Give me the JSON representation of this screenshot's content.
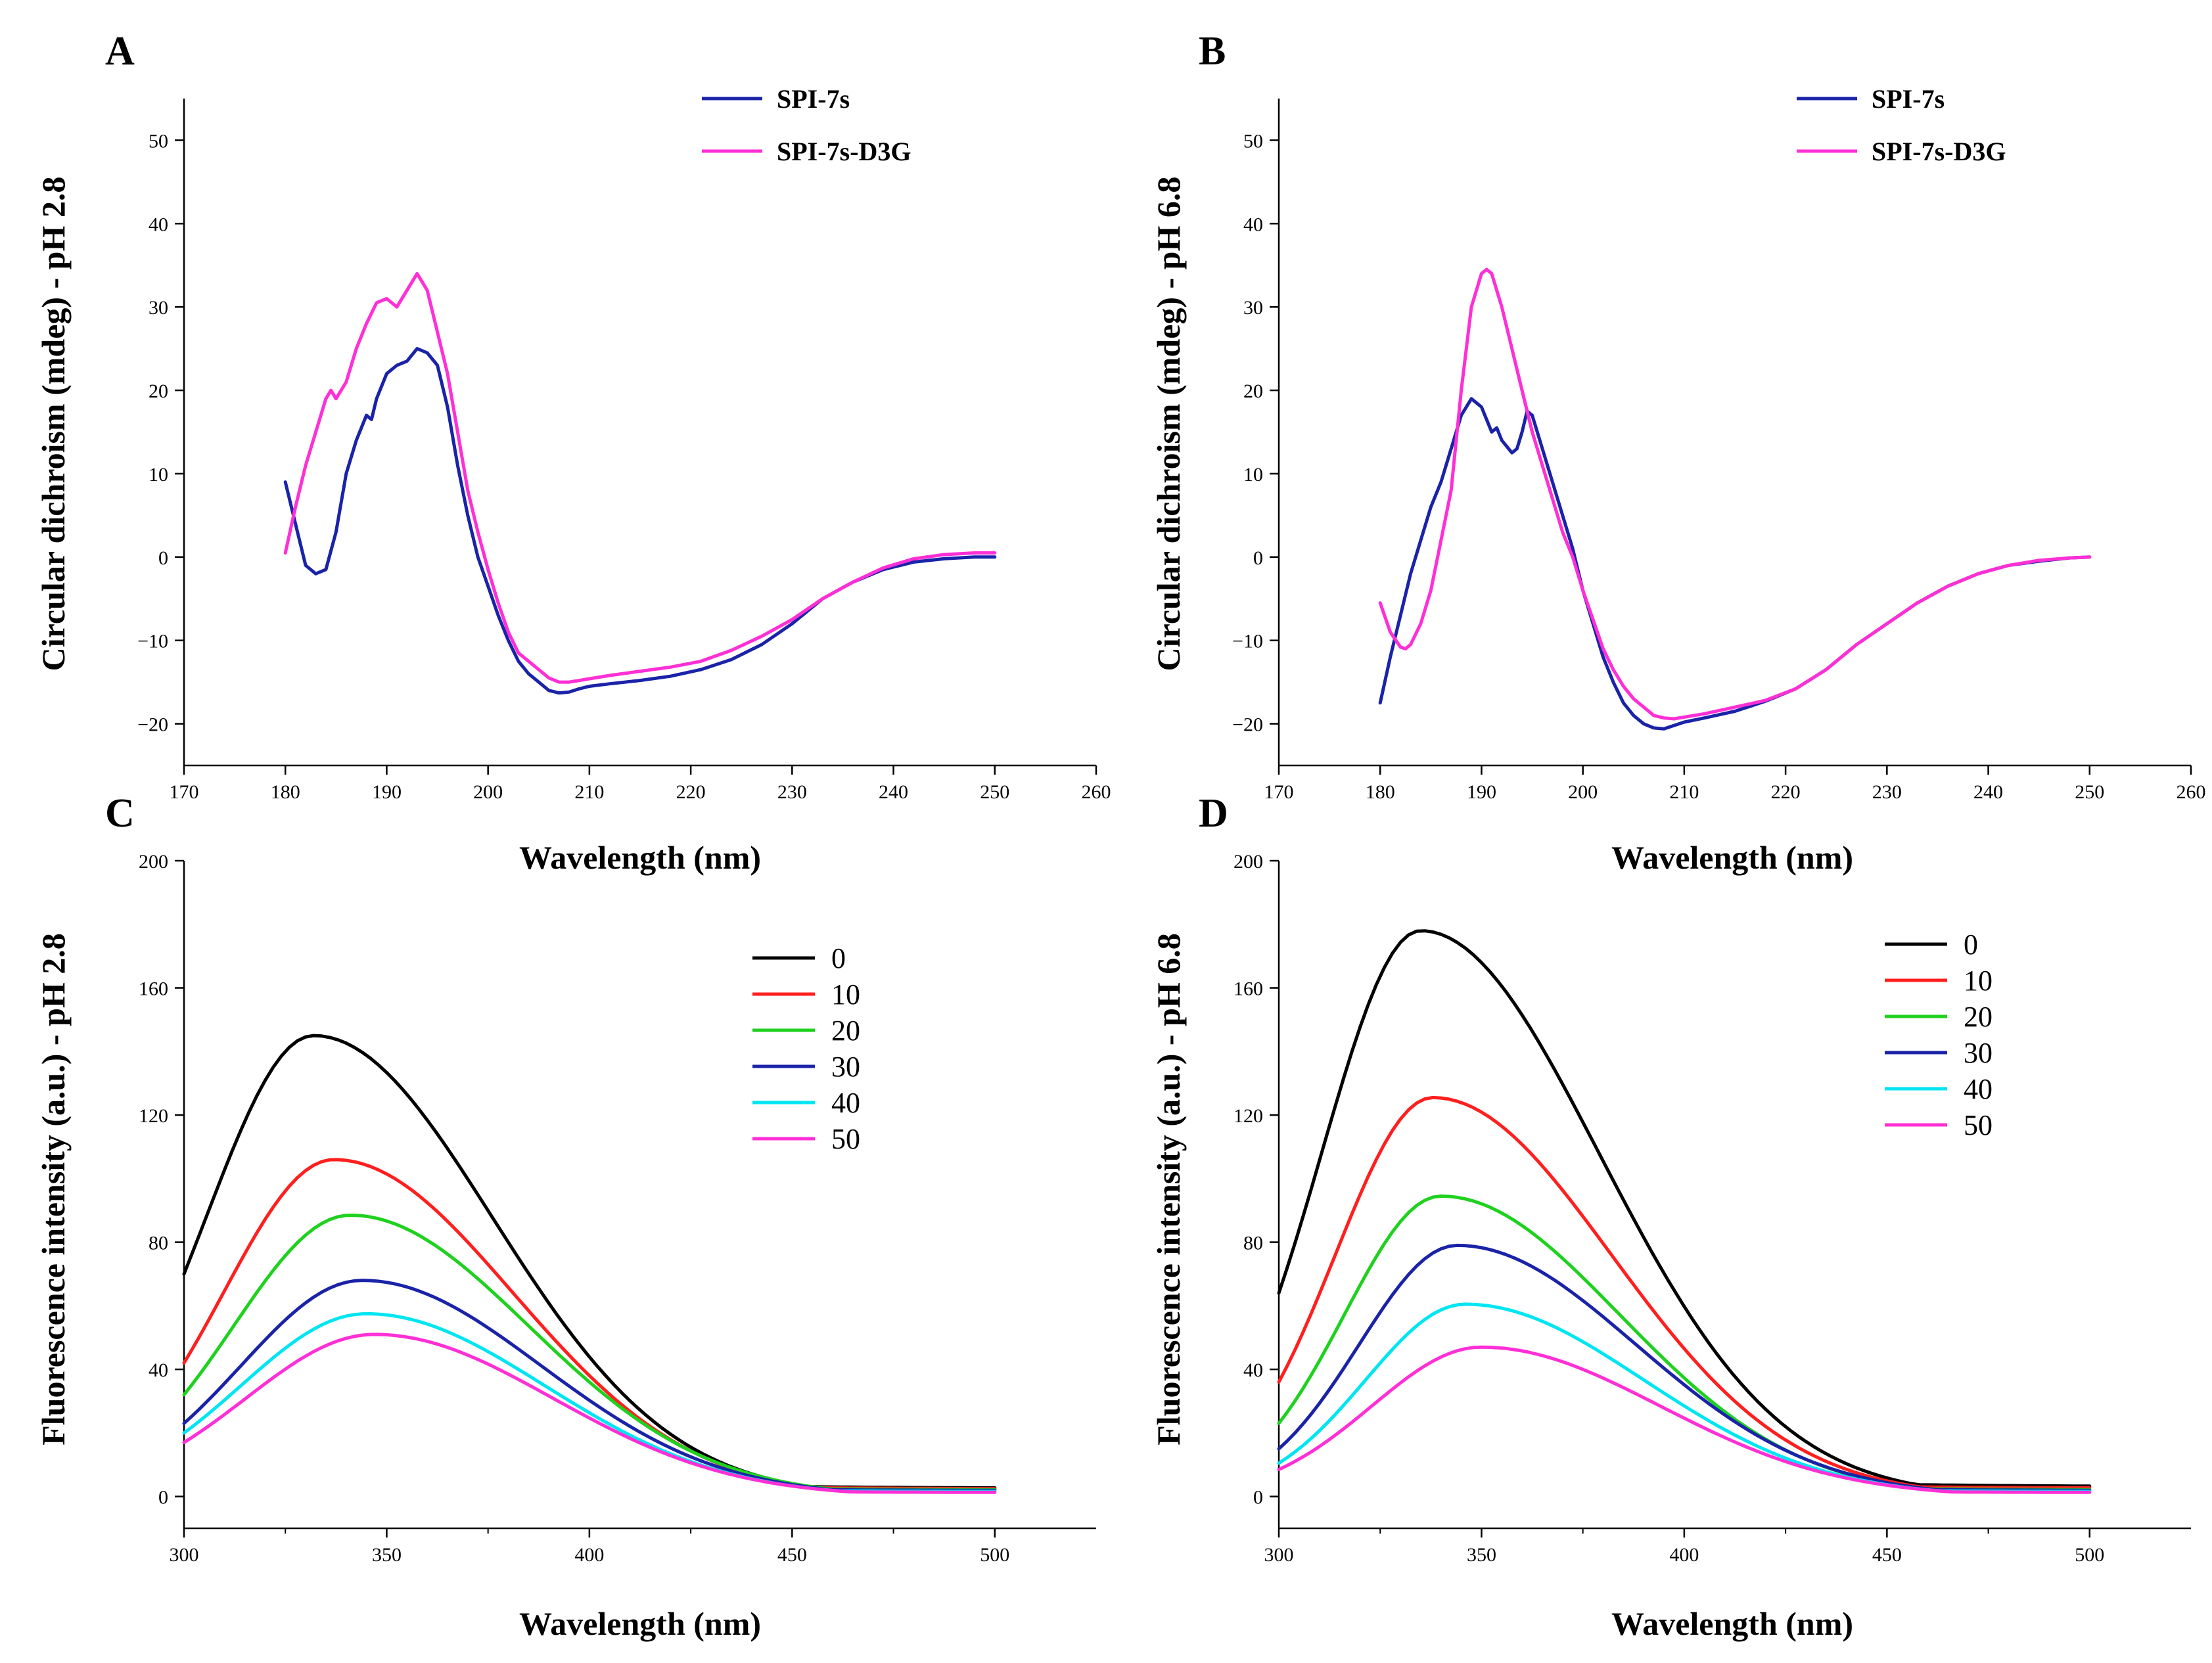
{
  "chart_data": [
    {
      "panel": "A",
      "type": "line",
      "xlabel": "Wavelength (nm)",
      "ylabel": "Circular dichroism (mdeg) - pH 2.8",
      "xlim": [
        170,
        260
      ],
      "ylim": [
        -25,
        55
      ],
      "xticks": [
        170,
        180,
        190,
        200,
        210,
        220,
        230,
        240,
        250,
        260
      ],
      "yticks": [
        -20,
        -10,
        0,
        10,
        20,
        30,
        40,
        50
      ],
      "tick_labels_x": [
        "170",
        "180",
        "190",
        "200",
        "210",
        "220",
        "230",
        "240",
        "250",
        "260"
      ],
      "tick_labels_y": [
        "−20",
        "−10",
        "0",
        "10",
        "20",
        "30",
        "40",
        "50"
      ],
      "legend_position": "top-right",
      "legend_style": "bold",
      "series": [
        {
          "name": "SPI-7s",
          "color": "#1a23a8",
          "x": [
            180,
            181,
            182,
            183,
            184,
            185,
            186,
            187,
            188,
            188.5,
            189,
            190,
            191,
            192,
            193,
            194,
            195,
            196,
            197,
            198,
            199,
            200,
            201,
            202,
            203,
            204,
            205,
            206,
            207,
            208,
            209,
            210,
            212,
            215,
            218,
            221,
            224,
            227,
            230,
            233,
            236,
            239,
            242,
            245,
            248,
            250
          ],
          "y": [
            9,
            4,
            -1,
            -2,
            -1.5,
            3,
            10,
            14,
            17,
            16.5,
            19,
            22,
            23,
            23.5,
            25,
            24.5,
            23,
            18,
            11,
            5,
            0,
            -3.5,
            -7,
            -10,
            -12.5,
            -14,
            -15,
            -16,
            -16.3,
            -16.2,
            -15.8,
            -15.5,
            -15.2,
            -14.8,
            -14.3,
            -13.5,
            -12.3,
            -10.5,
            -8,
            -5,
            -3,
            -1.5,
            -0.6,
            -0.2,
            0,
            0
          ]
        },
        {
          "name": "SPI-7s-D3G",
          "color": "#ff2fd6",
          "x": [
            180,
            181,
            182,
            183,
            184,
            184.5,
            185,
            186,
            187,
            188,
            189,
            190,
            191,
            192,
            193,
            194,
            195,
            196,
            197,
            198,
            199,
            200,
            201,
            202,
            203,
            204,
            205,
            206,
            207,
            208,
            209,
            210,
            212,
            215,
            218,
            221,
            224,
            227,
            230,
            233,
            236,
            239,
            242,
            245,
            248,
            250
          ],
          "y": [
            0.5,
            6,
            11,
            15,
            19,
            20,
            19,
            21,
            25,
            28,
            30.5,
            31,
            30,
            32,
            34,
            32,
            27,
            22,
            15,
            8,
            3,
            -1.5,
            -5.5,
            -9,
            -11.5,
            -12.5,
            -13.5,
            -14.5,
            -15,
            -15,
            -14.8,
            -14.6,
            -14.2,
            -13.7,
            -13.2,
            -12.5,
            -11.2,
            -9.5,
            -7.5,
            -5,
            -3,
            -1.3,
            -0.2,
            0.3,
            0.5,
            0.5
          ]
        }
      ]
    },
    {
      "panel": "B",
      "type": "line",
      "xlabel": "Wavelength (nm)",
      "ylabel": "Circular dichroism (mdeg) - pH 6.8",
      "xlim": [
        170,
        260
      ],
      "ylim": [
        -25,
        55
      ],
      "xticks": [
        170,
        180,
        190,
        200,
        210,
        220,
        230,
        240,
        250,
        260
      ],
      "yticks": [
        -20,
        -10,
        0,
        10,
        20,
        30,
        40,
        50
      ],
      "tick_labels_x": [
        "170",
        "180",
        "190",
        "200",
        "210",
        "220",
        "230",
        "240",
        "250",
        "260"
      ],
      "tick_labels_y": [
        "−20",
        "−10",
        "0",
        "10",
        "20",
        "30",
        "40",
        "50"
      ],
      "legend_position": "top-right",
      "legend_style": "bold",
      "series": [
        {
          "name": "SPI-7s",
          "color": "#1a23a8",
          "x": [
            180,
            181,
            182,
            183,
            184,
            185,
            186,
            187,
            188,
            189,
            190,
            191,
            191.5,
            192,
            193,
            193.5,
            194,
            194.5,
            195,
            196,
            197,
            198,
            199,
            200,
            201,
            202,
            203,
            204,
            205,
            206,
            207,
            208,
            209,
            210,
            212,
            215,
            218,
            221,
            224,
            227,
            230,
            233,
            236,
            239,
            242,
            245,
            248,
            250
          ],
          "y": [
            -17.5,
            -12,
            -7,
            -2,
            2,
            6,
            9,
            13,
            17,
            19,
            18,
            15,
            15.5,
            14,
            12.5,
            13,
            15,
            17.5,
            17,
            13,
            9,
            5,
            1,
            -4,
            -8,
            -12,
            -15,
            -17.5,
            -19,
            -20,
            -20.5,
            -20.6,
            -20.2,
            -19.8,
            -19.3,
            -18.5,
            -17.3,
            -15.8,
            -13.5,
            -10.5,
            -8,
            -5.5,
            -3.5,
            -2,
            -1,
            -0.5,
            -0.1,
            0
          ]
        },
        {
          "name": "SPI-7s-D3G",
          "color": "#ff2fd6",
          "x": [
            180,
            181,
            182,
            182.5,
            183,
            184,
            185,
            186,
            187,
            188,
            189,
            190,
            190.5,
            191,
            192,
            193,
            194,
            195,
            196,
            197,
            198,
            199,
            200,
            201,
            202,
            203,
            204,
            205,
            206,
            207,
            208,
            209,
            210,
            212,
            215,
            218,
            221,
            224,
            227,
            230,
            233,
            236,
            239,
            242,
            245,
            248,
            250
          ],
          "y": [
            -5.5,
            -9,
            -10.8,
            -11,
            -10.5,
            -8,
            -4,
            2,
            8,
            20,
            30,
            34,
            34.5,
            34,
            30,
            25,
            20,
            15,
            11,
            7,
            3,
            0,
            -4,
            -7.5,
            -11,
            -13.5,
            -15.5,
            -17,
            -18,
            -19,
            -19.3,
            -19.4,
            -19.2,
            -18.8,
            -18,
            -17.2,
            -15.8,
            -13.5,
            -10.5,
            -8,
            -5.5,
            -3.5,
            -2,
            -1,
            -0.4,
            -0.1,
            0
          ]
        }
      ]
    },
    {
      "panel": "C",
      "type": "line",
      "xlabel": "Wavelength (nm)",
      "ylabel": "Fluorescence intensity (a.u.) - pH 2.8",
      "xlim": [
        300,
        525
      ],
      "ylim": [
        -10,
        200
      ],
      "xticks": [
        300,
        350,
        400,
        450,
        500
      ],
      "yticks": [
        0,
        40,
        80,
        120,
        160,
        200
      ],
      "tick_labels_x": [
        "300",
        "350",
        "400",
        "450",
        "500"
      ],
      "tick_labels_y": [
        "0",
        "40",
        "80",
        "120",
        "160",
        "200"
      ],
      "legend_position": "top-right",
      "legend_style": "plain",
      "series": [
        {
          "name": "0",
          "color": "#000000",
          "peak_x": 332,
          "peak_y": 145,
          "start_y": 70,
          "end_y": 2.5
        },
        {
          "name": "10",
          "color": "#ff1f1f",
          "peak_x": 337,
          "peak_y": 106,
          "start_y": 42,
          "end_y": 2.3
        },
        {
          "name": "20",
          "color": "#1fd11f",
          "peak_x": 341,
          "peak_y": 88.5,
          "start_y": 32,
          "end_y": 2
        },
        {
          "name": "30",
          "color": "#1a23a8",
          "peak_x": 344,
          "peak_y": 68,
          "start_y": 23,
          "end_y": 1.8
        },
        {
          "name": "40",
          "color": "#00e5f2",
          "peak_x": 345,
          "peak_y": 57.5,
          "start_y": 20,
          "end_y": 1.5
        },
        {
          "name": "50",
          "color": "#ff2fd6",
          "peak_x": 347,
          "peak_y": 51,
          "start_y": 17,
          "end_y": 1.2
        }
      ]
    },
    {
      "panel": "D",
      "type": "line",
      "xlabel": "Wavelength (nm)",
      "ylabel": "Fluorescence intensity (a.u.) - pH 6.8",
      "xlim": [
        300,
        525
      ],
      "ylim": [
        -10,
        200
      ],
      "xticks": [
        300,
        350,
        400,
        450,
        500
      ],
      "yticks": [
        0,
        40,
        80,
        120,
        160,
        200
      ],
      "tick_labels_x": [
        "300",
        "350",
        "400",
        "450",
        "500"
      ],
      "tick_labels_y": [
        "0",
        "40",
        "80",
        "120",
        "160",
        "200"
      ],
      "legend_position": "top-right",
      "legend_style": "plain",
      "series": [
        {
          "name": "0",
          "color": "#000000",
          "peak_x": 335,
          "peak_y": 178,
          "start_y": 64,
          "end_y": 3
        },
        {
          "name": "10",
          "color": "#ff1f1f",
          "peak_x": 338,
          "peak_y": 125.5,
          "start_y": 36,
          "end_y": 2.5
        },
        {
          "name": "20",
          "color": "#1fd11f",
          "peak_x": 340,
          "peak_y": 94.5,
          "start_y": 23,
          "end_y": 2
        },
        {
          "name": "30",
          "color": "#1a23a8",
          "peak_x": 344,
          "peak_y": 79,
          "start_y": 15,
          "end_y": 1.8
        },
        {
          "name": "40",
          "color": "#00e5f2",
          "peak_x": 346,
          "peak_y": 60.5,
          "start_y": 10.5,
          "end_y": 1.5
        },
        {
          "name": "50",
          "color": "#ff2fd6",
          "peak_x": 350,
          "peak_y": 47,
          "start_y": 8.5,
          "end_y": 1.2
        }
      ]
    }
  ]
}
